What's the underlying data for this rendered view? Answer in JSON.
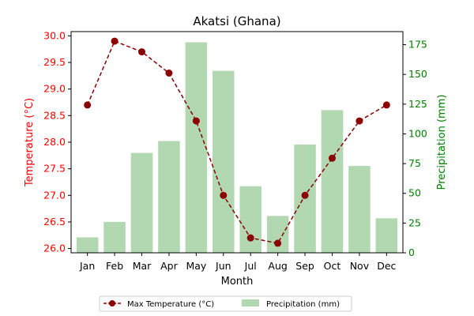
{
  "chart_data": {
    "type": "bar+line",
    "title": "Akatsi (Ghana)",
    "xlabel": "Month",
    "categories": [
      "Jan",
      "Feb",
      "Mar",
      "Apr",
      "May",
      "Jun",
      "Jul",
      "Aug",
      "Sep",
      "Oct",
      "Nov",
      "Dec"
    ],
    "left_axis": {
      "label": "Temperature (°C)",
      "color": "#ff0000",
      "ylim": [
        25.92,
        30.08
      ],
      "ticks": [
        "26.0",
        "26.5",
        "27.0",
        "27.5",
        "28.0",
        "28.5",
        "29.0",
        "29.5",
        "30.0"
      ]
    },
    "right_axis": {
      "label": "Precipitation (mm)",
      "color": "#008000",
      "ylim": [
        0,
        186
      ],
      "ticks": [
        "0",
        "25",
        "50",
        "75",
        "100",
        "125",
        "150",
        "175"
      ]
    },
    "series": [
      {
        "name": "Max Temperature (°C)",
        "kind": "line",
        "axis": "left",
        "color": "#8b0000",
        "style": "dashed",
        "values": [
          28.7,
          29.9,
          29.7,
          29.3,
          28.4,
          27.0,
          26.2,
          26.1,
          27.0,
          27.7,
          28.4,
          28.7
        ]
      },
      {
        "name": "Precipitation (mm)",
        "kind": "bar",
        "axis": "right",
        "color": "#b2d8b2",
        "values": [
          13,
          26,
          84,
          94,
          177,
          153,
          56,
          31,
          91,
          120,
          73,
          29
        ]
      }
    ],
    "legend": "bottom-center",
    "grid": false
  }
}
